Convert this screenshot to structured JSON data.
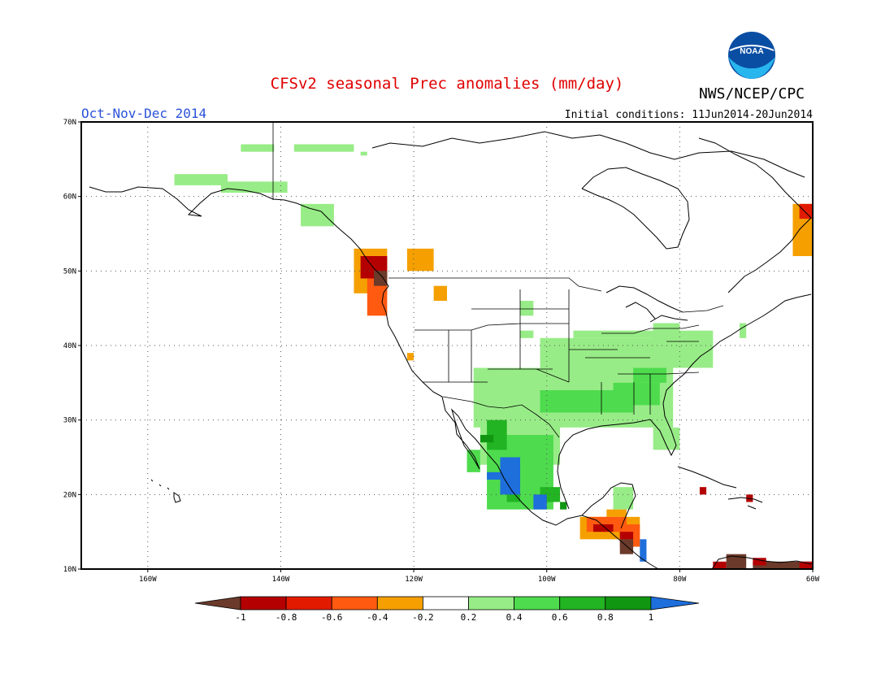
{
  "header": {
    "title": "CFSv2 seasonal Prec anomalies (mm/day)",
    "season": "Oct-Nov-Dec 2014",
    "initial_conditions": "Initial conditions: 11Jun2014-20Jun2014",
    "agency": "NWS/NCEP/CPC",
    "logo_text": "NOAA"
  },
  "map": {
    "projection": "equirectangular",
    "lon_range": [
      -170,
      -60
    ],
    "lat_range": [
      10,
      70
    ],
    "lon_ticks": [
      {
        "value": -160,
        "label": "160W"
      },
      {
        "value": -140,
        "label": "140W"
      },
      {
        "value": -120,
        "label": "120W"
      },
      {
        "value": -100,
        "label": "100W"
      },
      {
        "value": -80,
        "label": "80W"
      },
      {
        "value": -60,
        "label": "60W"
      }
    ],
    "lat_ticks": [
      {
        "value": 10,
        "label": "10N"
      },
      {
        "value": 20,
        "label": "20N"
      },
      {
        "value": 30,
        "label": "30N"
      },
      {
        "value": 40,
        "label": "40N"
      },
      {
        "value": 50,
        "label": "50N"
      },
      {
        "value": 60,
        "label": "60N"
      },
      {
        "value": 70,
        "label": "70N"
      }
    ],
    "grid": "dotted"
  },
  "colorbar": {
    "labels": [
      "-1",
      "-0.8",
      "-0.6",
      "-0.4",
      "-0.2",
      "0.2",
      "0.4",
      "0.6",
      "0.8",
      "1"
    ],
    "colors": [
      "#6b3a2a",
      "#b40000",
      "#e21b00",
      "#ff5a10",
      "#f5a000",
      "#ffffff",
      "#98ec87",
      "#4edb4e",
      "#22b422",
      "#119611",
      "#1e6edc"
    ],
    "classes": [
      {
        "range": "<-1",
        "color": "#6b3a2a"
      },
      {
        "range": "-1 to -0.8",
        "color": "#b40000"
      },
      {
        "range": "-0.8 to -0.6",
        "color": "#e21b00"
      },
      {
        "range": "-0.6 to -0.4",
        "color": "#ff5a10"
      },
      {
        "range": "-0.4 to -0.2",
        "color": "#f5a000"
      },
      {
        "range": "-0.2 to 0.2",
        "color": "#ffffff"
      },
      {
        "range": "0.2 to 0.4",
        "color": "#98ec87"
      },
      {
        "range": "0.4 to 0.6",
        "color": "#4edb4e"
      },
      {
        "range": "0.6 to 0.8",
        "color": "#22b422"
      },
      {
        "range": "0.8 to 1",
        "color": "#119611"
      },
      {
        "range": ">1",
        "color": "#1e6edc"
      }
    ]
  },
  "anomaly_regions": [
    {
      "name": "alaska-north-slope",
      "class": 6,
      "boxes": [
        [
          -146,
          66,
          -141,
          67
        ],
        [
          -138,
          66,
          -129,
          67
        ],
        [
          -128,
          65.5,
          -127,
          66
        ],
        [
          -156,
          61.5,
          -148,
          63
        ],
        [
          -149,
          60.5,
          -139,
          62
        ]
      ]
    },
    {
      "name": "alaska-panhandle",
      "class": 6,
      "boxes": [
        [
          -137,
          56,
          -132,
          59
        ]
      ]
    },
    {
      "name": "pacific-northwest-dry",
      "class": 4,
      "boxes": [
        [
          -129,
          47,
          -124,
          53
        ],
        [
          -121,
          50,
          -117,
          53
        ],
        [
          -117,
          46,
          -115,
          48
        ],
        [
          -121,
          38,
          -120,
          39
        ]
      ]
    },
    {
      "name": "pacific-northwest-dry-strong",
      "class": 3,
      "boxes": [
        [
          -127,
          44,
          -124,
          50
        ]
      ]
    },
    {
      "name": "pacific-northwest-dry-strongest",
      "class": 1,
      "boxes": [
        [
          -128,
          49,
          -124,
          52
        ]
      ]
    },
    {
      "name": "bc-coast-driest",
      "class": 0,
      "boxes": [
        [
          -126,
          48,
          -124,
          50
        ]
      ]
    },
    {
      "name": "labrador-dry",
      "class": 4,
      "boxes": [
        [
          -63,
          52,
          -60,
          59
        ]
      ]
    },
    {
      "name": "labrador-dry-strong",
      "class": 2,
      "boxes": [
        [
          -62,
          57,
          -60,
          59
        ]
      ]
    },
    {
      "name": "northern-plains-wet",
      "class": 6,
      "boxes": [
        [
          -104,
          44,
          -102,
          46
        ],
        [
          -104,
          41,
          -102,
          42
        ]
      ]
    },
    {
      "name": "great-lakes-northeast-wet",
      "class": 6,
      "boxes": [
        [
          -84,
          40,
          -80,
          43
        ],
        [
          -79,
          40,
          -75,
          42
        ],
        [
          -71,
          41,
          -70,
          43
        ]
      ]
    },
    {
      "name": "central-us-wet",
      "class": 6,
      "boxes": [
        [
          -111,
          29,
          -81,
          37
        ],
        [
          -101,
          37,
          -75,
          41
        ],
        [
          -96,
          41,
          -79,
          42
        ],
        [
          -110,
          24,
          -98,
          31
        ],
        [
          -84,
          26,
          -80,
          29
        ]
      ]
    },
    {
      "name": "south-central-us-wet-strong",
      "class": 7,
      "boxes": [
        [
          -101,
          31,
          -87,
          34
        ],
        [
          -90,
          32,
          -83,
          35
        ],
        [
          -87,
          35,
          -82,
          37
        ]
      ]
    },
    {
      "name": "mexico-wet",
      "class": 7,
      "boxes": [
        [
          -109,
          18,
          -99,
          28
        ],
        [
          -112,
          23,
          -110,
          26
        ]
      ]
    },
    {
      "name": "sierra-madre-wet-strong",
      "class": 8,
      "boxes": [
        [
          -109,
          26,
          -106,
          30
        ],
        [
          -106,
          19,
          -104,
          22
        ],
        [
          -101,
          19,
          -98,
          21
        ]
      ]
    },
    {
      "name": "sierra-madre-wet-strongest",
      "class": 9,
      "boxes": [
        [
          -110,
          27,
          -108,
          28
        ],
        [
          -98,
          18,
          -97,
          19
        ]
      ]
    },
    {
      "name": "mexico-pacific-coast-very-wet",
      "class": 10,
      "boxes": [
        [
          -107,
          20,
          -104,
          25
        ],
        [
          -109,
          22,
          -107,
          23
        ],
        [
          -102,
          18,
          -100,
          20
        ],
        [
          -86,
          11,
          -85,
          14
        ]
      ]
    },
    {
      "name": "yucatan-wet",
      "class": 6,
      "boxes": [
        [
          -90,
          18,
          -87,
          21
        ]
      ]
    },
    {
      "name": "central-america-dry",
      "class": 4,
      "boxes": [
        [
          -95,
          14,
          -86,
          17
        ],
        [
          -91,
          17,
          -88,
          18
        ]
      ]
    },
    {
      "name": "central-america-dry-strong",
      "class": 3,
      "boxes": [
        [
          -94,
          15,
          -88,
          17
        ],
        [
          -89,
          13,
          -86,
          16
        ]
      ]
    },
    {
      "name": "central-america-dry-strongest",
      "class": 1,
      "boxes": [
        [
          -93,
          15,
          -90,
          16
        ],
        [
          -89,
          14,
          -87,
          15
        ]
      ]
    },
    {
      "name": "central-america-driest",
      "class": 0,
      "boxes": [
        [
          -89,
          12,
          -87,
          14
        ]
      ]
    },
    {
      "name": "caribbean-dry",
      "class": 1,
      "boxes": [
        [
          -77,
          20,
          -76,
          21
        ],
        [
          -70,
          19,
          -69,
          20
        ]
      ]
    },
    {
      "name": "lesser-antilles-dry",
      "class": 0,
      "boxes": [
        [
          -73,
          10,
          -70,
          12
        ],
        [
          -69,
          10,
          -60,
          11
        ]
      ]
    },
    {
      "name": "lesser-antilles-dry-red",
      "class": 1,
      "boxes": [
        [
          -75,
          10,
          -73,
          11
        ],
        [
          -69,
          10.5,
          -67,
          11.5
        ],
        [
          -62,
          10,
          -60,
          11
        ]
      ]
    }
  ]
}
